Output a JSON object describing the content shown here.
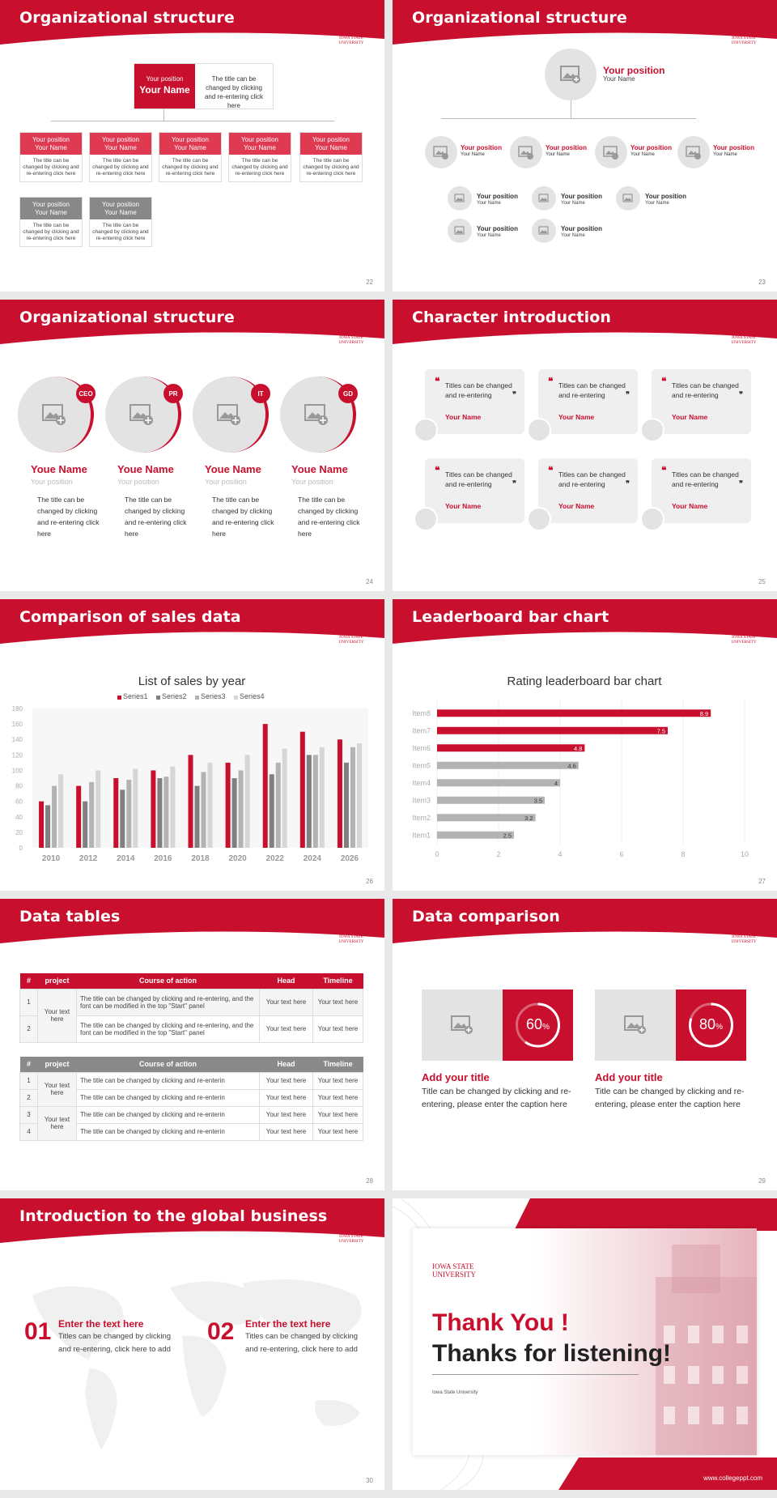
{
  "colors": {
    "accent": "#c8102e",
    "grey": "#b3b3b3",
    "mid": "#888888"
  },
  "logo": {
    "line1": "IOWA STATE",
    "line2": "UNIVERSITY"
  },
  "slides": [
    {
      "title": "Organizational structure",
      "page": "22",
      "top": {
        "position": "Your position",
        "name": "Your Name",
        "text": "The title can be changed by clicking and re-entering click here"
      },
      "cards": [
        {
          "position": "Your position",
          "name": "Your Name",
          "text": "The title can be changed by clicking and re-entering click here"
        },
        {
          "position": "Your position",
          "name": "Your Name",
          "text": "The title can be changed by clicking and re-entering click here"
        },
        {
          "position": "Your position",
          "name": "Your Name",
          "text": "The title can be changed by clicking and re-entering click here"
        },
        {
          "position": "Your position",
          "name": "Your Name",
          "text": "The title can be changed by clicking and re-entering click here"
        },
        {
          "position": "Your position",
          "name": "Your Name",
          "text": "The title can be changed by clicking and re-entering click here"
        },
        {
          "position": "Your position",
          "name": "Your Name",
          "text": "The title can be changed by clicking and re-entering click here"
        },
        {
          "position": "Your position",
          "name": "Your Name",
          "text": "The title can be changed by clicking and re-entering click here"
        }
      ]
    },
    {
      "title": "Organizational structure",
      "page": "23",
      "top": {
        "position": "Your position",
        "name": "Your Name"
      },
      "level1": [
        {
          "position": "Your position",
          "name": "Your Name"
        },
        {
          "position": "Your position",
          "name": "Your Name"
        },
        {
          "position": "Your position",
          "name": "Your Name"
        },
        {
          "position": "Your position",
          "name": "Your Name"
        }
      ],
      "level2": [
        {
          "position": "Your position",
          "name": "Your Name"
        },
        {
          "position": "Your position",
          "name": "Your Name"
        },
        {
          "position": "Your position",
          "name": "Your Name"
        },
        {
          "position": "Your position",
          "name": "Your Name"
        },
        {
          "position": "Your position",
          "name": "Your Name"
        },
        {
          "position": "Your position",
          "name": "Your Name"
        }
      ]
    },
    {
      "title": "Organizational structure",
      "page": "24",
      "people": [
        {
          "tag": "CEO",
          "name": "Youe Name",
          "position": "Your position",
          "text": "The title can be changed by clicking and re-entering click here"
        },
        {
          "tag": "PR",
          "name": "Youe Name",
          "position": "Your position",
          "text": "The title can be changed by clicking and re-entering click here"
        },
        {
          "tag": "IT",
          "name": "Youe Name",
          "position": "Your position",
          "text": "The title can be changed by clicking and re-entering click here"
        },
        {
          "tag": "GD",
          "name": "Youe Name",
          "position": "Your position",
          "text": "The title can be changed by clicking and re-entering click here"
        }
      ]
    },
    {
      "title": "Character introduction",
      "page": "25",
      "quotes": [
        {
          "text": "Titles can be changed and re-entering",
          "name": "Your Name"
        },
        {
          "text": "Titles can be changed and re-entering",
          "name": "Your Name"
        },
        {
          "text": "Titles can be changed and re-entering",
          "name": "Your Name"
        },
        {
          "text": "Titles can be changed and re-entering",
          "name": "Your Name"
        },
        {
          "text": "Titles can be changed and re-entering",
          "name": "Your Name"
        },
        {
          "text": "Titles can be changed and re-entering",
          "name": "Your Name"
        }
      ]
    },
    {
      "title": "Comparison of sales data",
      "page": "26"
    },
    {
      "title": "Leaderboard bar chart",
      "page": "27"
    },
    {
      "title": "Data tables",
      "page": "28",
      "table1": {
        "headers": [
          "#",
          "project",
          "Course of action",
          "Head",
          "Timeline"
        ],
        "project": "Your text here",
        "rows": [
          {
            "n": "1",
            "action": "The title can be changed by clicking and re-entering, and the font can be modified in the top \"Start\" panel",
            "head": "Your text here",
            "time": "Your text here"
          },
          {
            "n": "2",
            "action": "The title can be changed by clicking and re-entering, and the font can be modified in the top \"Start\" panel",
            "head": "Your text here",
            "time": "Your text here"
          }
        ]
      },
      "table2": {
        "headers": [
          "#",
          "project",
          "Course of action",
          "Head",
          "Timeline"
        ],
        "project_a": "Your text here",
        "project_b": "Your text here",
        "rows": [
          {
            "n": "1",
            "action": "The title can be changed by clicking and re-enterin",
            "head": "Your text here",
            "time": "Your text here"
          },
          {
            "n": "2",
            "action": "The title can be changed by clicking and re-enterin",
            "head": "Your text here",
            "time": "Your text here"
          },
          {
            "n": "3",
            "action": "The title can be changed by clicking and re-enterin",
            "head": "Your text here",
            "time": "Your text here"
          },
          {
            "n": "4",
            "action": "The title can be changed by clicking and re-enterin",
            "head": "Your text here",
            "time": "Your text here"
          }
        ]
      }
    },
    {
      "title": "Data comparison",
      "page": "29",
      "items": [
        {
          "percent": "60",
          "unit": "%",
          "value": 0.6,
          "title": "Add your title",
          "text": "Title can be changed by clicking and re-entering, please enter the caption here"
        },
        {
          "percent": "80",
          "unit": "%",
          "value": 0.8,
          "title": "Add your title",
          "text": "Title can be changed by clicking and re-entering, please enter the caption here"
        }
      ]
    },
    {
      "title": "Introduction to the global business",
      "page": "30",
      "items": [
        {
          "num": "01",
          "title": "Enter the text here",
          "text": "Titles can be changed by clicking and re-entering, click here to add"
        },
        {
          "num": "02",
          "title": "Enter the text here",
          "text": "Titles can be changed by clicking and re-entering, click here to add"
        }
      ]
    },
    {
      "thanks1": "Thank You !",
      "thanks2": "Thanks for listening!",
      "sub": "Iowa State University",
      "url": "www.collegeppt.com"
    }
  ],
  "chart_data": [
    {
      "type": "bar",
      "title": "List of sales by year",
      "categories": [
        "2010",
        "2012",
        "2014",
        "2016",
        "2018",
        "2020",
        "2022",
        "2024",
        "2026"
      ],
      "series": [
        {
          "name": "Series1",
          "color": "#c8102e",
          "values": [
            60,
            80,
            90,
            100,
            120,
            110,
            160,
            150,
            140
          ]
        },
        {
          "name": "Series2",
          "color": "#808080",
          "values": [
            55,
            60,
            75,
            90,
            80,
            90,
            95,
            120,
            110
          ]
        },
        {
          "name": "Series3",
          "color": "#b3b3b3",
          "values": [
            80,
            85,
            88,
            92,
            98,
            100,
            110,
            120,
            130
          ]
        },
        {
          "name": "Series4",
          "color": "#d6d6d6",
          "values": [
            95,
            100,
            102,
            105,
            110,
            120,
            128,
            130,
            135
          ]
        }
      ],
      "ylim": [
        0,
        180
      ],
      "yticks": [
        0,
        20,
        40,
        60,
        80,
        100,
        120,
        140,
        160,
        180
      ],
      "legend": "top",
      "grid": false
    },
    {
      "type": "bar",
      "orientation": "horizontal",
      "title": "Rating leaderboard bar chart",
      "categories": [
        "Item8",
        "Item7",
        "Item6",
        "Item5",
        "Item4",
        "Item3",
        "Item2",
        "Item1"
      ],
      "values": [
        8.9,
        7.5,
        4.8,
        4.6,
        4,
        3.5,
        3.2,
        2.5
      ],
      "labels": [
        "8.9",
        "7.5",
        "4.8",
        "4.6",
        "4",
        "3.5",
        "3.2",
        "2.5"
      ],
      "xlim": [
        0,
        10
      ],
      "xticks": [
        0,
        2,
        4,
        6,
        8,
        10
      ],
      "grid": true
    }
  ]
}
